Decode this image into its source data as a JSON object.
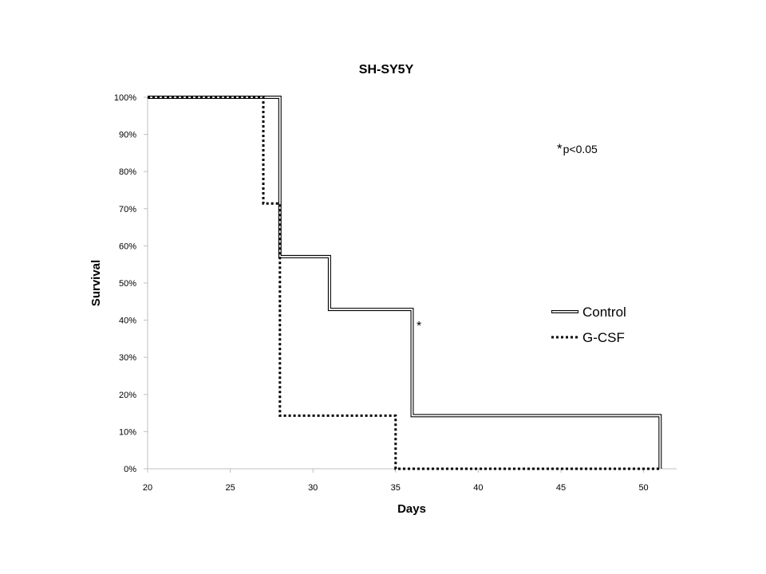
{
  "chart_data": {
    "type": "line",
    "title": "SH-SY5Y",
    "xlabel": "Days",
    "ylabel": "Survival",
    "xlim": [
      20,
      52
    ],
    "ylim": [
      0,
      100
    ],
    "x_ticks": [
      20,
      25,
      30,
      35,
      40,
      45,
      50
    ],
    "y_ticks": [
      0,
      10,
      20,
      30,
      40,
      50,
      60,
      70,
      80,
      90,
      100
    ],
    "y_tick_suffix": "%",
    "grid": false,
    "legend_position": "right",
    "series": [
      {
        "name": "Control",
        "style": "double",
        "color": "#000000",
        "points": [
          [
            20,
            100
          ],
          [
            28,
            100
          ],
          [
            28,
            57.1
          ],
          [
            31,
            57.1
          ],
          [
            31,
            42.9
          ],
          [
            36,
            42.9
          ],
          [
            36,
            14.3
          ],
          [
            51,
            14.3
          ],
          [
            51,
            0
          ]
        ]
      },
      {
        "name": "G-CSF",
        "style": "dotted",
        "color": "#000000",
        "points": [
          [
            20,
            100
          ],
          [
            27,
            100
          ],
          [
            27,
            71.4
          ],
          [
            28,
            71.4
          ],
          [
            28,
            14.3
          ],
          [
            35,
            14.3
          ],
          [
            35,
            0
          ],
          [
            51,
            0
          ]
        ]
      }
    ],
    "annotations": {
      "significance_note_star": "*",
      "significance_note_text": "p<0.05",
      "marker": "*"
    }
  }
}
